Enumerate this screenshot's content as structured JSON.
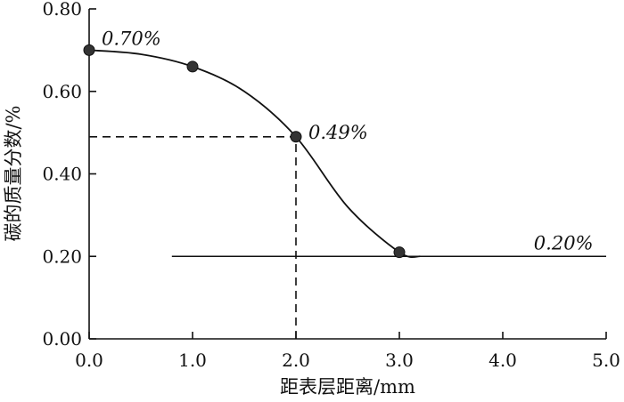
{
  "chart_data": {
    "type": "line",
    "title": "",
    "xlabel": "距表层距离/mm",
    "ylabel": "碳的质量分数/%",
    "xlim": [
      0,
      5
    ],
    "ylim": [
      0,
      0.8
    ],
    "xticks": [
      "0.0",
      "1.0",
      "2.0",
      "3.0",
      "4.0",
      "5.0"
    ],
    "xtick_values": [
      0,
      1,
      2,
      3,
      4,
      5
    ],
    "yticks": [
      "0.00",
      "0.20",
      "0.40",
      "0.60",
      "0.80"
    ],
    "ytick_values": [
      0,
      0.2,
      0.4,
      0.6,
      0.8
    ],
    "grid": false,
    "series": [
      {
        "curve": {
          "x": [
            0.0,
            0.5,
            1.0,
            1.5,
            2.0,
            2.5,
            3.0,
            3.2
          ],
          "y": [
            0.7,
            0.69,
            0.66,
            0.6,
            0.49,
            0.32,
            0.21,
            0.2
          ]
        },
        "markers": {
          "x": [
            0.0,
            1.0,
            2.0,
            3.0
          ],
          "y": [
            0.7,
            0.66,
            0.49,
            0.21
          ]
        }
      }
    ],
    "reference_lines": [
      {
        "style": "solid",
        "y": 0.2,
        "x_from": 0.8,
        "x_to": 5.0
      },
      {
        "style": "dashed",
        "y": 0.49,
        "x_from": 0.0,
        "x_to": 2.0
      },
      {
        "style": "dashed",
        "x": 2.0,
        "y_from": 0.0,
        "y_to": 0.49
      }
    ],
    "annotations": [
      {
        "text": "0.70%",
        "x": 0.0,
        "y": 0.7
      },
      {
        "text": "0.49%",
        "x": 2.0,
        "y": 0.49
      },
      {
        "text": "0.20%",
        "x": 4.3,
        "y": 0.2
      }
    ]
  }
}
